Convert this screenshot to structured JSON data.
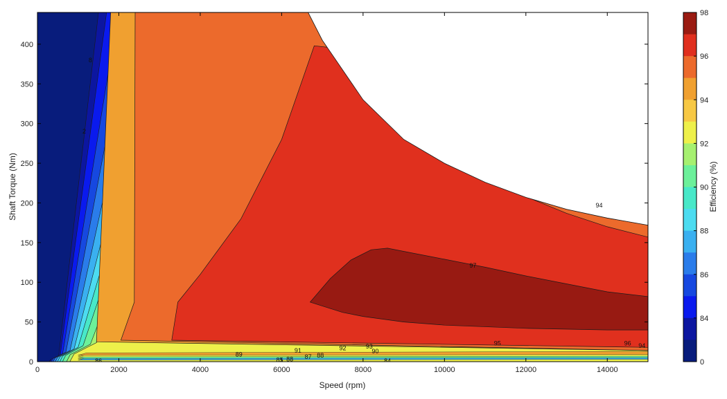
{
  "chart_data": {
    "type": "contour",
    "title": "",
    "xlabel": "Speed  (rpm)",
    "ylabel": "Shaft Torque  (Nm)",
    "xlim": [
      0,
      15000
    ],
    "ylim": [
      0,
      440
    ],
    "xticks": [
      0,
      2000,
      4000,
      6000,
      8000,
      10000,
      12000,
      14000
    ],
    "yticks": [
      0,
      50,
      100,
      150,
      200,
      250,
      300,
      350,
      400
    ],
    "grid": false,
    "max_torque_envelope": [
      [
        0,
        440
      ],
      [
        6650,
        440
      ],
      [
        7000,
        405
      ],
      [
        8000,
        330
      ],
      [
        9000,
        280
      ],
      [
        10000,
        250
      ],
      [
        11000,
        226
      ],
      [
        12000,
        207
      ],
      [
        13000,
        192
      ],
      [
        14000,
        181
      ],
      [
        15000,
        172
      ]
    ],
    "efficiency_regions": [
      {
        "level": 94,
        "color": "#f0a030",
        "boundary": [
          [
            1800,
            440
          ],
          [
            6650,
            440
          ],
          [
            7000,
            405
          ],
          [
            8000,
            330
          ],
          [
            9000,
            280
          ],
          [
            10000,
            250
          ],
          [
            11000,
            226
          ],
          [
            12000,
            207
          ],
          [
            13000,
            192
          ],
          [
            14000,
            181
          ],
          [
            15000,
            172
          ],
          [
            15000,
            14
          ],
          [
            1450,
            25
          ]
        ]
      },
      {
        "level": 95,
        "color": "#ec6a2c",
        "boundary": [
          [
            2400,
            440
          ],
          [
            6650,
            440
          ],
          [
            7000,
            405
          ],
          [
            8000,
            330
          ],
          [
            9000,
            280
          ],
          [
            10000,
            250
          ],
          [
            11000,
            226
          ],
          [
            12000,
            207
          ],
          [
            13000,
            192
          ],
          [
            14000,
            181
          ],
          [
            15000,
            172
          ],
          [
            15000,
            14
          ],
          [
            2050,
            27
          ],
          [
            2380,
            75
          ]
        ]
      },
      {
        "level": 96,
        "color": "#e0301e",
        "boundary": [
          [
            3450,
            75
          ],
          [
            4000,
            110
          ],
          [
            5000,
            180
          ],
          [
            6000,
            280
          ],
          [
            6800,
            398
          ],
          [
            7150,
            396
          ],
          [
            8000,
            345
          ],
          [
            9000,
            290
          ],
          [
            10000,
            255
          ],
          [
            11000,
            230
          ],
          [
            12000,
            208
          ],
          [
            13000,
            187
          ],
          [
            14000,
            170
          ],
          [
            15000,
            157
          ],
          [
            15000,
            18
          ],
          [
            3300,
            27
          ]
        ]
      },
      {
        "level": 97,
        "color": "#981a12",
        "boundary": [
          [
            6700,
            75
          ],
          [
            7200,
            105
          ],
          [
            7700,
            128
          ],
          [
            8200,
            141
          ],
          [
            8600,
            143
          ],
          [
            9000,
            139
          ],
          [
            10000,
            129
          ],
          [
            11000,
            119
          ],
          [
            12000,
            108
          ],
          [
            13000,
            98
          ],
          [
            14000,
            88
          ],
          [
            15000,
            82
          ],
          [
            15000,
            40
          ],
          [
            14000,
            40
          ],
          [
            12000,
            42
          ],
          [
            10000,
            46
          ],
          [
            9000,
            50
          ],
          [
            8000,
            57
          ],
          [
            7500,
            62
          ]
        ]
      }
    ],
    "contour_labels": [
      {
        "text": "8",
        "x": 1300,
        "y": 380
      },
      {
        "text": "2",
        "x": 1150,
        "y": 290
      },
      {
        "text": "89",
        "x": 4950,
        "y": 9
      },
      {
        "text": "85",
        "x": 5950,
        "y": 2
      },
      {
        "text": "88",
        "x": 6200,
        "y": 3
      },
      {
        "text": "87",
        "x": 6650,
        "y": 6
      },
      {
        "text": "88",
        "x": 6950,
        "y": 8
      },
      {
        "text": "91",
        "x": 6400,
        "y": 14
      },
      {
        "text": "92",
        "x": 7500,
        "y": 17
      },
      {
        "text": "93",
        "x": 8150,
        "y": 19
      },
      {
        "text": "90",
        "x": 8300,
        "y": 13
      },
      {
        "text": "95",
        "x": 11300,
        "y": 23
      },
      {
        "text": "96",
        "x": 14500,
        "y": 23
      },
      {
        "text": "94",
        "x": 14850,
        "y": 20
      },
      {
        "text": "97",
        "x": 10700,
        "y": 121
      },
      {
        "text": "94",
        "x": 13800,
        "y": 197
      },
      {
        "text": "86",
        "x": 1500,
        "y": 1
      },
      {
        "text": "84",
        "x": 8600,
        "y": 1
      }
    ],
    "colorbar": {
      "label": "Efficiency (%)",
      "ticks": [
        "98",
        "96",
        "94",
        "92",
        "90",
        "88",
        "86",
        "84",
        "0"
      ],
      "levels": [
        "98",
        "97",
        "96",
        "95",
        "94",
        "93",
        "92",
        "91",
        "90",
        "89",
        "88",
        "87",
        "86",
        "85",
        "84",
        "0"
      ],
      "colors": [
        "#9a1b12",
        "#e02f1e",
        "#ec6a2c",
        "#f0a030",
        "#f7c844",
        "#eef04a",
        "#a6f070",
        "#6cf09a",
        "#48e8c8",
        "#4cdcf0",
        "#3ab0f0",
        "#2a7cea",
        "#1648e0",
        "#0a1aee",
        "#0c16a0",
        "#081c7c"
      ]
    }
  }
}
